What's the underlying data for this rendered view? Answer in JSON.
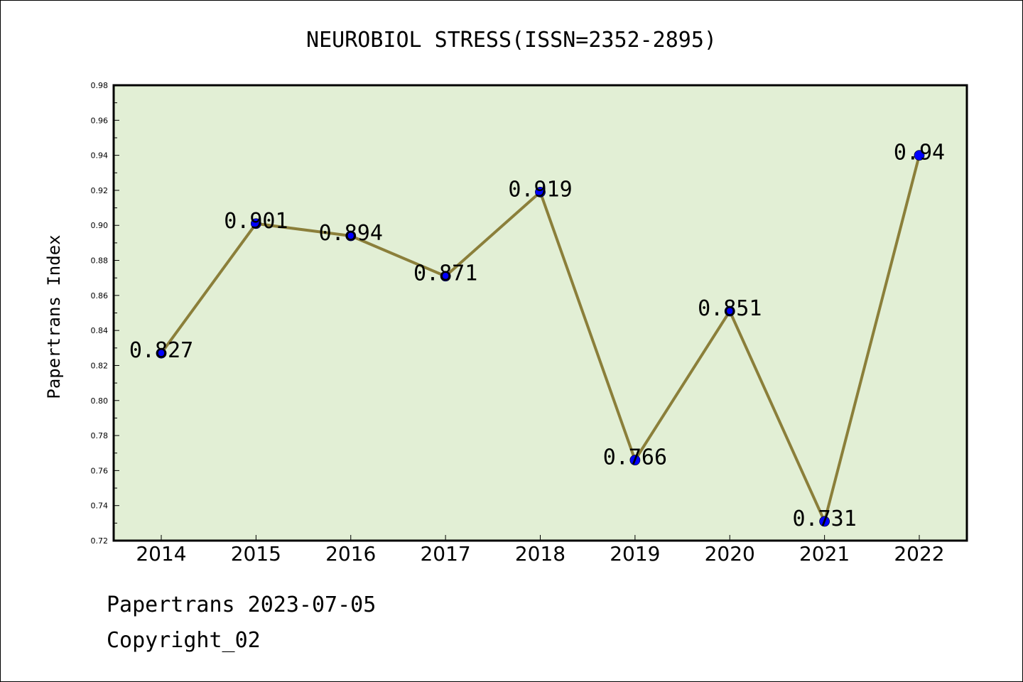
{
  "chart_data": {
    "type": "line",
    "title": "NEUROBIOL STRESS(ISSN=2352-2895)",
    "xlabel": "",
    "ylabel": "Papertrans Index",
    "categories": [
      "2014",
      "2015",
      "2016",
      "2017",
      "2018",
      "2019",
      "2020",
      "2021",
      "2022"
    ],
    "values": [
      0.827,
      0.901,
      0.894,
      0.871,
      0.919,
      0.766,
      0.851,
      0.731,
      0.94
    ],
    "data_labels": [
      "0.827",
      "0.901",
      "0.894",
      "0.871",
      "0.919",
      "0.766",
      "0.851",
      "0.731",
      "0.94"
    ],
    "ylim": [
      0.72,
      0.98
    ],
    "yticks": [
      "0.72",
      "0.74",
      "0.76",
      "0.78",
      "0.80",
      "0.82",
      "0.84",
      "0.86",
      "0.88",
      "0.90",
      "0.92",
      "0.94",
      "0.96",
      "0.98"
    ],
    "grid": false,
    "line_color": "#8b7f3a",
    "marker_color": "#0000ff",
    "plot_background": "#e2efd5"
  },
  "footer": {
    "line1": "Papertrans 2023-07-05",
    "line2": "Copyright_02"
  }
}
